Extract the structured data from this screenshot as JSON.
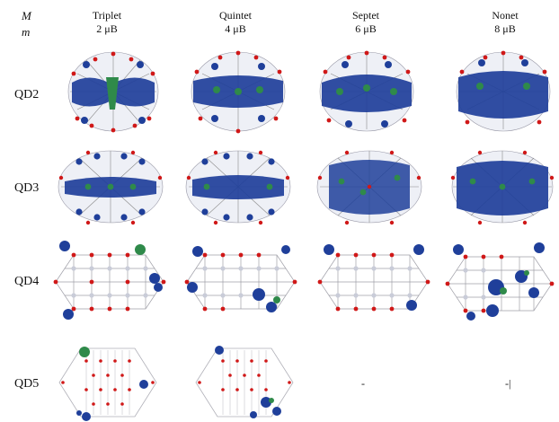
{
  "axis": {
    "M": "M",
    "m": "m"
  },
  "columns": [
    {
      "name": "Triplet",
      "moment": "2 μB"
    },
    {
      "name": "Quintet",
      "moment": "4 μB"
    },
    {
      "name": "Septet",
      "moment": "6 μB"
    },
    {
      "name": "Nonet",
      "moment": "8 μB"
    }
  ],
  "rows": [
    {
      "label": "QD2"
    },
    {
      "label": "QD3"
    },
    {
      "label": "QD4"
    },
    {
      "label": "QD5"
    }
  ],
  "empty_cell_marks": [
    "-",
    "-|"
  ],
  "colors": {
    "spin_blue": "#1f3f9a",
    "spin_green": "#2f8a4a",
    "oxygen": "#d01818",
    "metal": "#c9ccd8",
    "bond": "#8a8a8a"
  }
}
